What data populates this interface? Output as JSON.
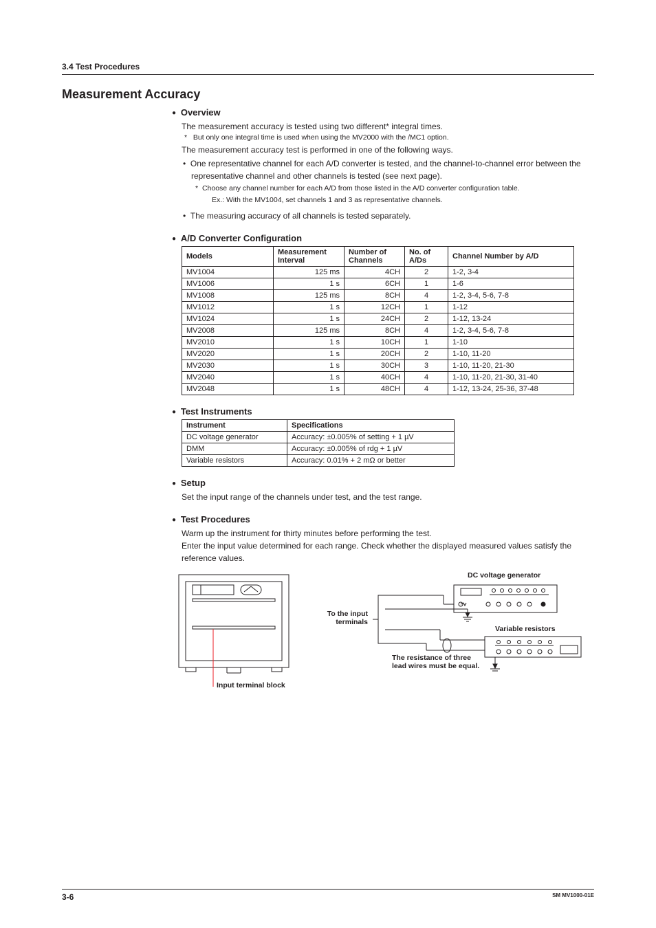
{
  "header": {
    "breadcrumb": "3.4  Test Procedures"
  },
  "title": "Measurement Accuracy",
  "overview": {
    "heading": "Overview",
    "p1": "The measurement accuracy is tested using two different* integral times.",
    "note1_ast": "*",
    "note1": "But only one integral time is used when using the MV2000 with the /MC1 option.",
    "p2": "The measurement accuracy test is performed in one of the following ways.",
    "li1": "One representative channel for each A/D converter is tested, and the channel-to-channel error between the representative channel and other channels is tested (see next page).",
    "sub_ast": "*",
    "sub1": "Choose any channel number for each A/D from those listed in the A/D converter configuration table.",
    "sub2": "Ex.: With the MV1004, set channels 1 and 3 as representative channels.",
    "li2": "The measuring accuracy of all channels is tested separately."
  },
  "config": {
    "heading": "A/D Converter Configuration",
    "cols": {
      "c1": "Models",
      "c2a": "Measurement",
      "c2b": "Interval",
      "c3a": "Number of",
      "c3b": "Channels",
      "c4a": "No. of",
      "c4b": "A/Ds",
      "c5": "Channel Number by A/D"
    },
    "rows": [
      {
        "m": "MV1004",
        "i": "125 ms",
        "n": "4CH",
        "a": "2",
        "ch": "1-2, 3-4"
      },
      {
        "m": "MV1006",
        "i": "1 s",
        "n": "6CH",
        "a": "1",
        "ch": "1-6"
      },
      {
        "m": "MV1008",
        "i": "125 ms",
        "n": "8CH",
        "a": "4",
        "ch": "1-2, 3-4, 5-6, 7-8"
      },
      {
        "m": "MV1012",
        "i": "1 s",
        "n": "12CH",
        "a": "1",
        "ch": "1-12"
      },
      {
        "m": "MV1024",
        "i": "1 s",
        "n": "24CH",
        "a": "2",
        "ch": "1-12, 13-24"
      },
      {
        "m": "MV2008",
        "i": "125 ms",
        "n": "8CH",
        "a": "4",
        "ch": "1-2, 3-4, 5-6, 7-8"
      },
      {
        "m": "MV2010",
        "i": "1 s",
        "n": "10CH",
        "a": "1",
        "ch": "1-10"
      },
      {
        "m": "MV2020",
        "i": "1 s",
        "n": "20CH",
        "a": "2",
        "ch": "1-10, 11-20"
      },
      {
        "m": "MV2030",
        "i": "1 s",
        "n": "30CH",
        "a": "3",
        "ch": "1-10, 11-20, 21-30"
      },
      {
        "m": "MV2040",
        "i": "1 s",
        "n": "40CH",
        "a": "4",
        "ch": "1-10, 11-20, 21-30, 31-40"
      },
      {
        "m": "MV2048",
        "i": "1 s",
        "n": "48CH",
        "a": "4",
        "ch": "1-12, 13-24, 25-36, 37-48"
      }
    ]
  },
  "instruments": {
    "heading": "Test Instruments",
    "cols": {
      "c1": "Instrument",
      "c2": "Specifications"
    },
    "rows": [
      {
        "i": "DC voltage generator",
        "s": "Accuracy: ±0.005% of setting + 1 µV"
      },
      {
        "i": "DMM",
        "s": "Accuracy: ±0.005% of rdg + 1 µV"
      },
      {
        "i": "Variable resistors",
        "s": "Accuracy: 0.01% + 2 mΩ or better"
      }
    ]
  },
  "setup": {
    "heading": "Setup",
    "p1": "Set the input range of the channels under test, and the test range."
  },
  "procedures": {
    "heading": "Test Procedures",
    "p1": "Warm up the instrument for thirty minutes before performing the test.",
    "p2": "Enter the input value determined for each range. Check whether the displayed measured values satisfy the reference values."
  },
  "diagram": {
    "input_terminal_block": "Input terminal block",
    "to_input_terminals_l1": "To the input",
    "to_input_terminals_l2": "terminals",
    "dc_gen": "DC voltage generator",
    "var_res": "Variable resistors",
    "lead_wires_l1": "The resistance of three",
    "lead_wires_l2": "lead wires must be equal.",
    "colors": {
      "stroke": "#231f20",
      "red": "#ed1c24"
    }
  },
  "footer": {
    "page": "3-6",
    "doc": "SM MV1000-01E"
  }
}
